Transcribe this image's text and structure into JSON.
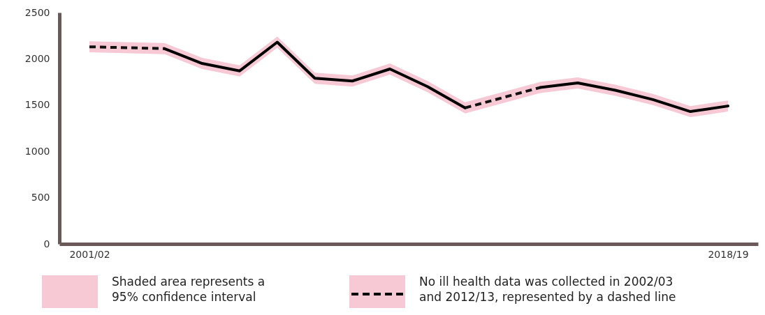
{
  "chart_data": {
    "type": "line",
    "categories": [
      "2001/02",
      null,
      null,
      null,
      null,
      null,
      null,
      null,
      null,
      null,
      null,
      null,
      null,
      null,
      null,
      null,
      null,
      "2018/19"
    ],
    "series": [
      {
        "color": "#000000",
        "line_style": "solid",
        "values": [
          null,
          null,
          2110,
          1950,
          1870,
          2180,
          1790,
          1760,
          1890,
          1700,
          1470,
          null,
          1690,
          1740,
          1660,
          1560,
          1430,
          1490
        ],
        "lower": [
          2070,
          null,
          2050,
          1890,
          1810,
          2120,
          1730,
          1700,
          1830,
          1640,
          1410,
          null,
          1630,
          1680,
          1600,
          1500,
          1370,
          1430
        ],
        "upper": [
          2190,
          null,
          2170,
          2010,
          1930,
          2240,
          1850,
          1820,
          1950,
          1760,
          1530,
          null,
          1750,
          1800,
          1720,
          1620,
          1490,
          1550
        ]
      },
      {
        "color": "#111111",
        "line_style": "dashed",
        "values": [
          2130,
          2120,
          2110,
          null,
          null,
          null,
          null,
          null,
          null,
          null,
          1470,
          1580,
          1690,
          null,
          null,
          null,
          null,
          null
        ]
      }
    ],
    "ylim": [
      0,
      2500
    ],
    "yticks": [
      0,
      500,
      1000,
      1500,
      2000,
      2500
    ],
    "grid": false,
    "annotations": [
      "Shaded area represents a 95% confidence interval",
      "No ill health data was collected in 2002/03 and 2012/13, represented by a dashed line"
    ]
  }
}
